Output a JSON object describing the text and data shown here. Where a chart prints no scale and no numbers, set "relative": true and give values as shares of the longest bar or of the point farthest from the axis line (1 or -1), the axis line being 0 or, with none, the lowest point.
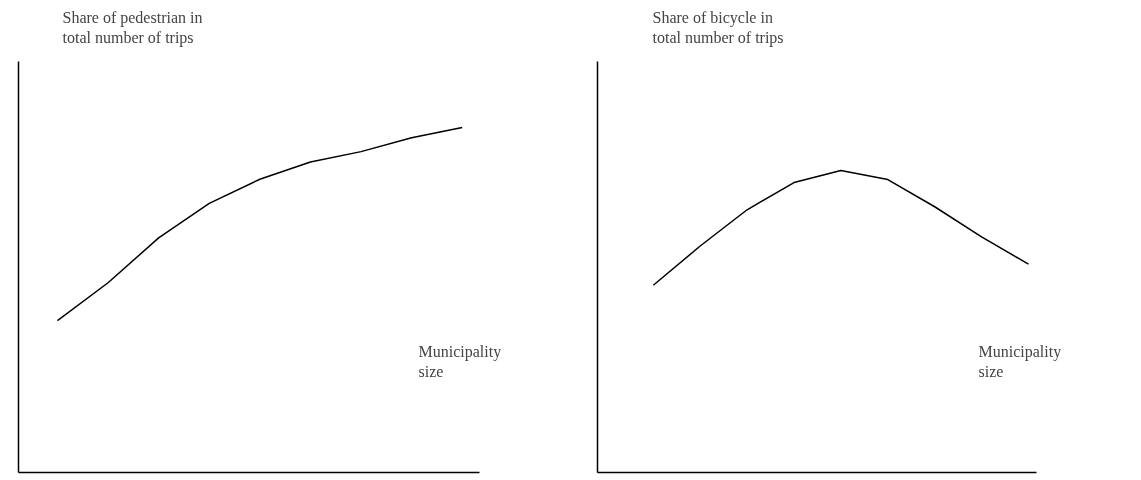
{
  "chart_data": [
    {
      "type": "line",
      "relative": true,
      "ylabel": "Share of pedestrian in\ntotal number of trips",
      "xlabel": "Municipality\nsize",
      "categories": [
        null,
        null,
        null,
        null,
        null,
        null,
        null,
        null,
        null
      ],
      "series": [
        {
          "color": "#000000",
          "values": [
            0.44,
            0.55,
            0.68,
            0.78,
            0.85,
            0.9,
            0.93,
            0.97,
            1.0
          ]
        }
      ]
    },
    {
      "type": "line",
      "relative": true,
      "ylabel": "Share of bicycle in\ntotal number of trips",
      "xlabel": "Municipality\nsize",
      "categories": [
        null,
        null,
        null,
        null,
        null,
        null,
        null,
        null,
        null
      ],
      "series": [
        {
          "color": "#000000",
          "values": [
            0.62,
            0.75,
            0.87,
            0.96,
            1.0,
            0.97,
            0.88,
            0.78,
            0.69
          ]
        }
      ]
    }
  ]
}
